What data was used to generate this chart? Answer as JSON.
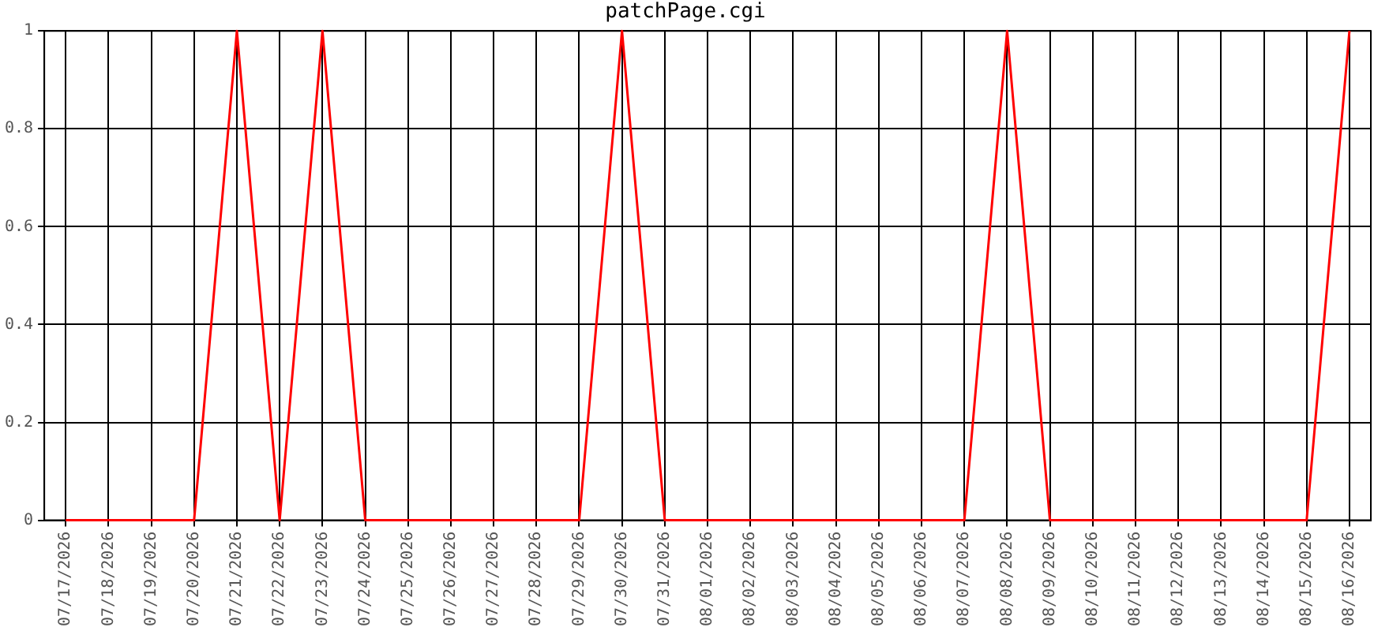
{
  "chart_data": {
    "type": "line",
    "title": "patchPage.cgi",
    "categories": [
      "07/17/2026",
      "07/18/2026",
      "07/19/2026",
      "07/20/2026",
      "07/21/2026",
      "07/22/2026",
      "07/23/2026",
      "07/24/2026",
      "07/25/2026",
      "07/26/2026",
      "07/27/2026",
      "07/28/2026",
      "07/29/2026",
      "07/30/2026",
      "07/31/2026",
      "08/01/2026",
      "08/02/2026",
      "08/03/2026",
      "08/04/2026",
      "08/05/2026",
      "08/06/2026",
      "08/07/2026",
      "08/08/2026",
      "08/09/2026",
      "08/10/2026",
      "08/11/2026",
      "08/12/2026",
      "08/13/2026",
      "08/14/2026",
      "08/15/2026",
      "08/16/2026"
    ],
    "series": [
      {
        "color": "#ff0000",
        "values": [
          0,
          0,
          0,
          0,
          1,
          0,
          1,
          0,
          0,
          0,
          0,
          0,
          0,
          1,
          0,
          0,
          0,
          0,
          0,
          0,
          0,
          0,
          1,
          0,
          0,
          0,
          0,
          0,
          0,
          0,
          1
        ]
      }
    ],
    "ylim": [
      0,
      1
    ],
    "yticks": [
      0,
      0.2,
      0.4,
      0.6,
      0.8,
      1
    ],
    "grid": true,
    "legend": false,
    "marker": "none",
    "line_style": "solid"
  }
}
